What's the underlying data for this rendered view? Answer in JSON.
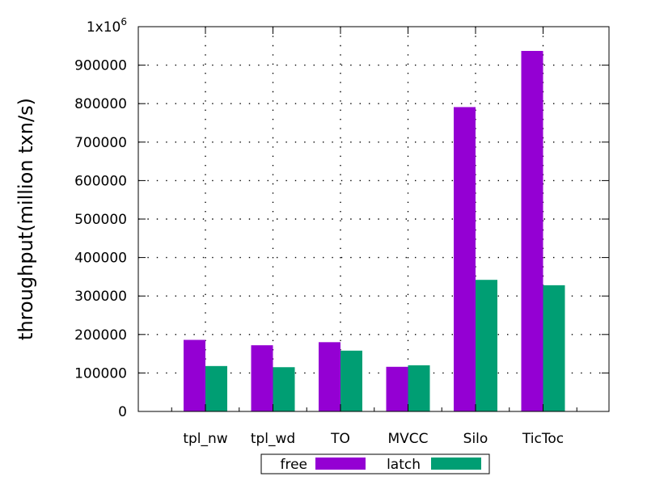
{
  "chart_data": {
    "type": "bar",
    "title": "",
    "xlabel": "",
    "ylabel": "throughput(million txn/s)",
    "categories": [
      "tpl_nw",
      "tpl_wd",
      "TO",
      "MVCC",
      "Silo",
      "TicToc"
    ],
    "series": [
      {
        "name": "free",
        "color": "#9400d3",
        "values": [
          186000,
          172000,
          180000,
          116000,
          791000,
          937000
        ]
      },
      {
        "name": "latch",
        "color": "#009e73",
        "values": [
          118000,
          115000,
          158000,
          120000,
          342000,
          328000
        ]
      }
    ],
    "ylim": [
      0,
      1000000
    ],
    "yticks": [
      "0",
      "100000",
      "200000",
      "300000",
      "400000",
      "500000",
      "600000",
      "700000",
      "800000",
      "900000"
    ],
    "ytick_top": {
      "base": "1x10",
      "exponent": "6"
    },
    "grid": true,
    "legend_position": "bottom-center"
  }
}
